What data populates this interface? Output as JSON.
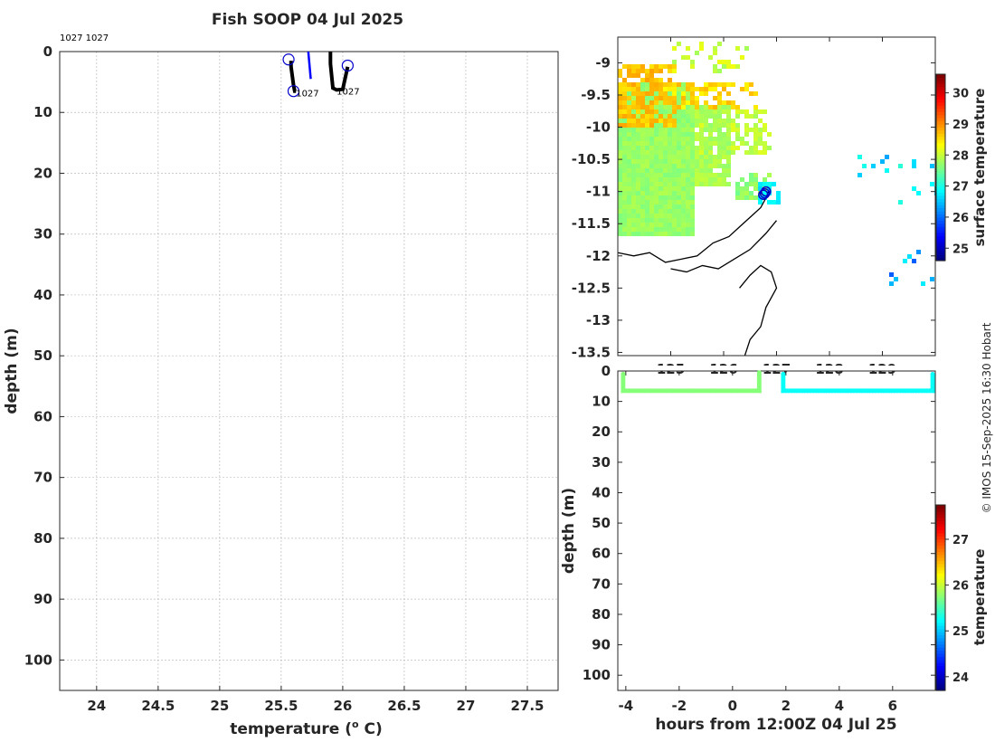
{
  "title": "Fish SOOP 04 Jul 2025",
  "credit": "© IMOS 15-Sep-2025 16:30 Hobart",
  "chart_data": [
    {
      "type": "line",
      "name": "profile",
      "xlabel": "temperature (",
      "xlabel_sup": "o",
      "xlabel_end": " C)",
      "ylabel": "depth (m)",
      "xlim": [
        23.7,
        27.75
      ],
      "ylim": [
        105,
        0
      ],
      "x_ticks": [
        "24",
        "24.5",
        "25",
        "25.5",
        "26",
        "26.5",
        "27",
        "27.5"
      ],
      "x_tick_values": [
        24,
        24.5,
        25,
        25.5,
        26,
        26.5,
        27,
        27.5
      ],
      "y_ticks": [
        "0",
        "10",
        "20",
        "30",
        "40",
        "50",
        "60",
        "70",
        "80",
        "90",
        "100"
      ],
      "y_tick_values": [
        0,
        10,
        20,
        30,
        40,
        50,
        60,
        70,
        80,
        90,
        100
      ],
      "top_annotation": "1027 1027",
      "profiles": [
        {
          "color": "#000000",
          "x": [
            25.58,
            25.58,
            25.59,
            25.6,
            25.61,
            25.62
          ],
          "y": [
            1.5,
            2.5,
            4,
            5.5,
            6.5,
            6.5
          ]
        },
        {
          "color": "#000000",
          "x": [
            25.9,
            25.9,
            25.91,
            25.92,
            25.95,
            26.0,
            26.04
          ],
          "y": [
            0,
            2,
            4,
            6,
            6.3,
            6.2,
            2.5
          ]
        },
        {
          "color": "#0000ff",
          "x": [
            25.72,
            25.74
          ],
          "y": [
            0,
            4.5
          ]
        }
      ],
      "markers": [
        {
          "x": 25.56,
          "y": 1.3
        },
        {
          "x": 25.6,
          "y": 6.5
        },
        {
          "x": 26.04,
          "y": 2.3
        }
      ],
      "annotations": [
        {
          "text": "1027",
          "x": 25.62,
          "y": 6.8
        },
        {
          "text": "1027",
          "x": 25.95,
          "y": 6.5
        }
      ]
    },
    {
      "type": "heatmap",
      "name": "map",
      "colorbar_label": "surface temperature",
      "xlim": [
        124.0,
        130.0
      ],
      "ylim": [
        -13.55,
        -8.6
      ],
      "x_ticks": [
        "125",
        "126",
        "127",
        "128",
        "129"
      ],
      "x_tick_values": [
        125,
        126,
        127,
        128,
        129
      ],
      "y_ticks": [
        "-9",
        "-9.5",
        "-10",
        "-10.5",
        "-11",
        "-11.5",
        "-12",
        "-12.5",
        "-13",
        "-13.5"
      ],
      "y_tick_values": [
        -9,
        -9.5,
        -10,
        -10.5,
        -11,
        -11.5,
        -12,
        -12.5,
        -13,
        -13.5
      ],
      "colorbar_ticks": [
        "25",
        "26",
        "27",
        "28",
        "29",
        "30"
      ],
      "colorbar_values": [
        25,
        26,
        27,
        28,
        29,
        30
      ],
      "colorbar_range": [
        24.6,
        30.6
      ],
      "track_markers": [
        {
          "lon": 126.75,
          "lat": -11.05
        },
        {
          "lon": 126.78,
          "lat": -11.03
        },
        {
          "lon": 126.8,
          "lat": -11.0
        }
      ]
    },
    {
      "type": "scatter",
      "name": "depth-time",
      "xlabel": "hours from 12:00Z 04 Jul 25",
      "ylabel": "depth (m)",
      "colorbar_label": "temperature",
      "xlim": [
        -4.3,
        7.6
      ],
      "ylim": [
        105,
        0
      ],
      "x_ticks": [
        "-4",
        "-2",
        "0",
        "2",
        "4",
        "6"
      ],
      "x_tick_values": [
        -4,
        -2,
        0,
        2,
        4,
        6
      ],
      "y_ticks": [
        "0",
        "10",
        "20",
        "30",
        "40",
        "50",
        "60",
        "70",
        "80",
        "90",
        "100"
      ],
      "y_tick_values": [
        0,
        10,
        20,
        30,
        40,
        50,
        60,
        70,
        80,
        90,
        100
      ],
      "colorbar_ticks": [
        "24",
        "25",
        "26",
        "27"
      ],
      "colorbar_values": [
        24,
        25,
        26,
        27
      ],
      "colorbar_range": [
        23.7,
        27.75
      ],
      "segments": [
        {
          "t_start": -4.1,
          "t_end": 1.0,
          "depth": 6.5,
          "temp": 25.75
        },
        {
          "t_start": 1.9,
          "t_end": 7.5,
          "depth": 6.5,
          "temp": 25.25
        }
      ]
    }
  ]
}
